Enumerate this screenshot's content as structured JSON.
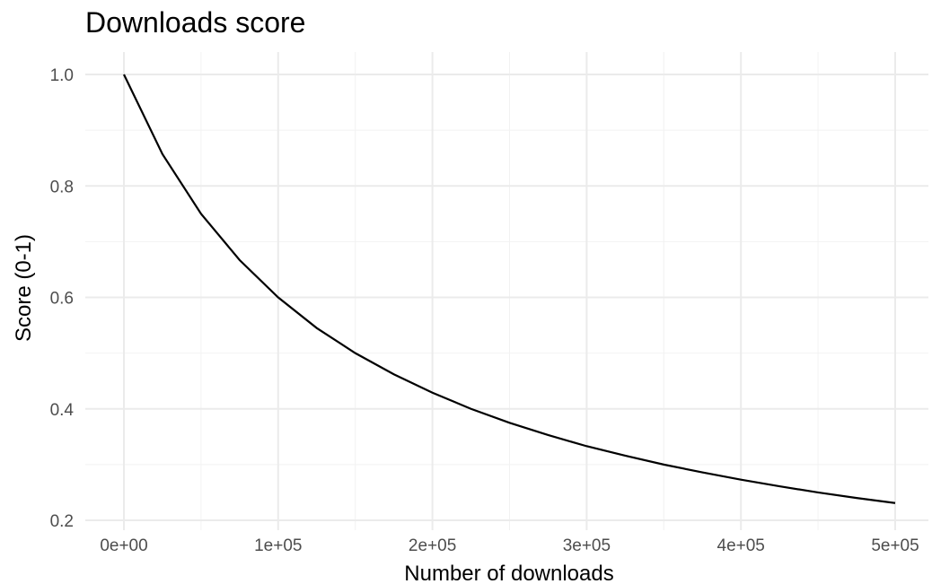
{
  "chart_data": {
    "type": "line",
    "title": "Downloads score",
    "xlabel": "Number of downloads",
    "ylabel": "Score (0-1)",
    "xlim": [
      0,
      500000
    ],
    "ylim": [
      0.2,
      1.0
    ],
    "x_ticks": [
      {
        "value": 0,
        "label": "0e+00"
      },
      {
        "value": 100000,
        "label": "1e+05"
      },
      {
        "value": 200000,
        "label": "2e+05"
      },
      {
        "value": 300000,
        "label": "3e+05"
      },
      {
        "value": 400000,
        "label": "4e+05"
      },
      {
        "value": 500000,
        "label": "5e+05"
      }
    ],
    "y_ticks": [
      {
        "value": 0.2,
        "label": "0.2"
      },
      {
        "value": 0.4,
        "label": "0.4"
      },
      {
        "value": 0.6,
        "label": "0.6"
      },
      {
        "value": 0.8,
        "label": "0.8"
      },
      {
        "value": 1.0,
        "label": "1.0"
      }
    ],
    "grid": true,
    "legend": "none",
    "series": [
      {
        "color": "#000000",
        "x": [
          0,
          25000,
          50000,
          75000,
          100000,
          125000,
          150000,
          175000,
          200000,
          225000,
          250000,
          275000,
          300000,
          325000,
          350000,
          375000,
          400000,
          425000,
          450000,
          475000,
          500000
        ],
        "y": [
          1.0,
          0.857,
          0.75,
          0.667,
          0.6,
          0.545,
          0.5,
          0.462,
          0.429,
          0.4,
          0.375,
          0.353,
          0.333,
          0.316,
          0.3,
          0.286,
          0.273,
          0.261,
          0.25,
          0.24,
          0.231
        ]
      }
    ]
  }
}
